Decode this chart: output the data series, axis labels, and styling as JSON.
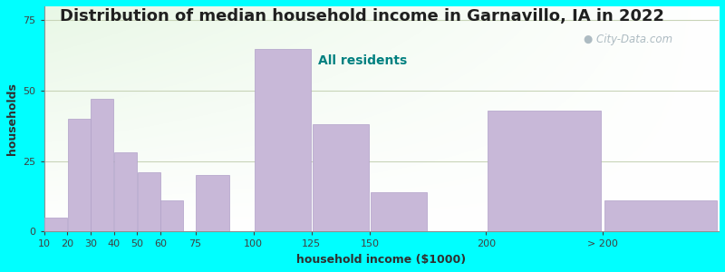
{
  "title": "Distribution of median household income in Garnavillo, IA in 2022",
  "subtitle": "All residents",
  "xlabel": "household income ($1000)",
  "ylabel": "households",
  "background_color": "#00FFFF",
  "bar_color": "#c8b8d8",
  "bar_edge_color": "#b0a0c8",
  "bar_values": [
    5,
    40,
    47,
    28,
    21,
    11,
    20,
    65,
    38,
    14,
    43,
    11
  ],
  "bar_widths": [
    10,
    10,
    10,
    10,
    10,
    10,
    15,
    25,
    25,
    25,
    50,
    50
  ],
  "bar_lefts": [
    10,
    20,
    30,
    40,
    50,
    60,
    75,
    100,
    125,
    150,
    200,
    250
  ],
  "xlim": [
    10,
    300
  ],
  "ylim": [
    0,
    80
  ],
  "yticks": [
    0,
    25,
    50,
    75
  ],
  "title_fontsize": 13,
  "subtitle_fontsize": 10,
  "axis_label_fontsize": 9,
  "watermark_text": " City-Data.com",
  "watermark_color": "#a0b0b8",
  "grid_color": "#c8d4b8",
  "xtick_positions": [
    10,
    20,
    30,
    40,
    50,
    60,
    75,
    100,
    125,
    150,
    200,
    250
  ],
  "xtick_labels": [
    "10",
    "20",
    "30",
    "40",
    "50",
    "60",
    "75",
    "100",
    "125",
    "150",
    "200",
    "> 200"
  ],
  "title_color": "#202020",
  "subtitle_color": "#008080"
}
